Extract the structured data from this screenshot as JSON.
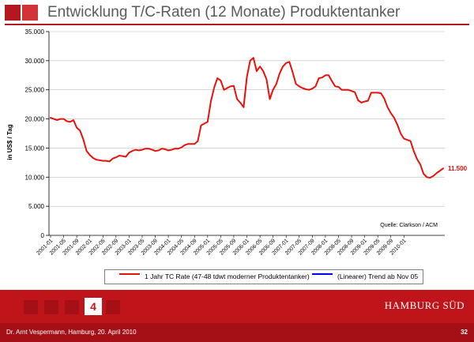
{
  "header": {
    "title": "Entwicklung T/C-Raten (12 Monate) Produktentanker",
    "accent": "#b3181f"
  },
  "chart_data": {
    "type": "line",
    "ylabel": "in US$ / Tag",
    "ylim": [
      0,
      35000
    ],
    "yticks": [
      "0",
      "5.000",
      "10.000",
      "15.000",
      "20.000",
      "25.000",
      "30.000",
      "35.000"
    ],
    "xticks": [
      "2001-01",
      "2001-05",
      "2001-09",
      "2002-01",
      "2002-05",
      "2002-09",
      "2003-01",
      "2003-05",
      "2003-09",
      "2004-01",
      "2004-05",
      "2004-09",
      "2005-01",
      "2005-05",
      "2005-09",
      "2006-01",
      "2006-05",
      "2006-09",
      "2007-01",
      "2007-05",
      "2007-09",
      "2008-01",
      "2008-05",
      "2008-09",
      "2009-01",
      "2009-05",
      "2009-09",
      "2010-01"
    ],
    "grid": "horizontal",
    "source": "Quelle: Clarkson / ACM",
    "end_label": "11.500",
    "series": [
      {
        "name": "1 Jahr TC Rate (47-48 tdwt moderner Produktentanker)",
        "color": "#e8120c",
        "values": [
          20200,
          20000,
          19800,
          20000,
          20000,
          19600,
          19500,
          19800,
          18500,
          18000,
          16500,
          14500,
          13800,
          13300,
          13000,
          12900,
          12800,
          12800,
          12700,
          13200,
          13400,
          13700,
          13600,
          13500,
          14200,
          14500,
          14700,
          14600,
          14700,
          14900,
          14900,
          14700,
          14500,
          14600,
          14900,
          14800,
          14600,
          14700,
          14900,
          14900,
          15100,
          15500,
          15700,
          15700,
          15700,
          16200,
          18900,
          19200,
          19500,
          23000,
          25400,
          27000,
          26600,
          25000,
          25300,
          25600,
          25700,
          23400,
          22800,
          22000,
          27200,
          30000,
          30500,
          28200,
          29000,
          28200,
          26800,
          23400,
          25000,
          26000,
          27800,
          29000,
          29600,
          29800,
          28000,
          26000,
          25600,
          25300,
          25100,
          25000,
          25200,
          25600,
          27000,
          27100,
          27500,
          27500,
          26500,
          25600,
          25500,
          25000,
          25000,
          25000,
          24800,
          24600,
          23200,
          22800,
          23000,
          23100,
          24500,
          24500,
          24500,
          24400,
          23500,
          22000,
          21000,
          20200,
          19000,
          17500,
          16600,
          16400,
          16200,
          14500,
          13100,
          12200,
          10600,
          10000,
          9900,
          10200,
          10700,
          11100,
          11500
        ]
      },
      {
        "name": "(Linearer) Trend ab Nov 05",
        "color": "#0000ee",
        "values": []
      }
    ]
  },
  "footer": {
    "pages": [
      "",
      "",
      "",
      "4",
      ""
    ],
    "current_page": "4",
    "brand": "HAMBURG SÜD",
    "presenter": "Dr. Arnt Vespermann, Hamburg, 20. April 2010",
    "slide_number": "32"
  },
  "colors": {
    "band": "#c0141b",
    "bar": "#a51017"
  }
}
